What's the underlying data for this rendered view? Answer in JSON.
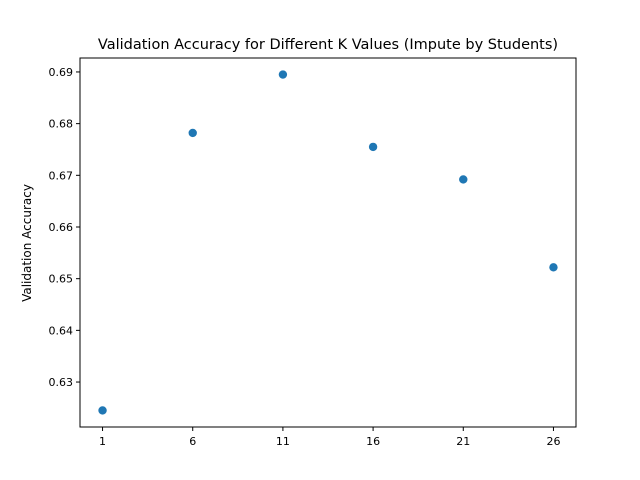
{
  "chart_data": {
    "type": "scatter",
    "title": "Validation Accuracy for Different K Values (Impute by Students)",
    "xlabel": "",
    "ylabel": "Validation Accuracy",
    "x": [
      1,
      6,
      11,
      16,
      21,
      26
    ],
    "y": [
      0.6245,
      0.6782,
      0.6895,
      0.6755,
      0.6692,
      0.6522
    ],
    "xticks": [
      "1",
      "6",
      "11",
      "16",
      "21",
      "26"
    ],
    "yticks": [
      "0.63",
      "0.64",
      "0.65",
      "0.66",
      "0.67",
      "0.68",
      "0.69"
    ],
    "xlim": [
      -0.25,
      27.25
    ],
    "ylim": [
      0.6213,
      0.6927
    ],
    "grid": false,
    "marker_color": "#1f77b4"
  }
}
